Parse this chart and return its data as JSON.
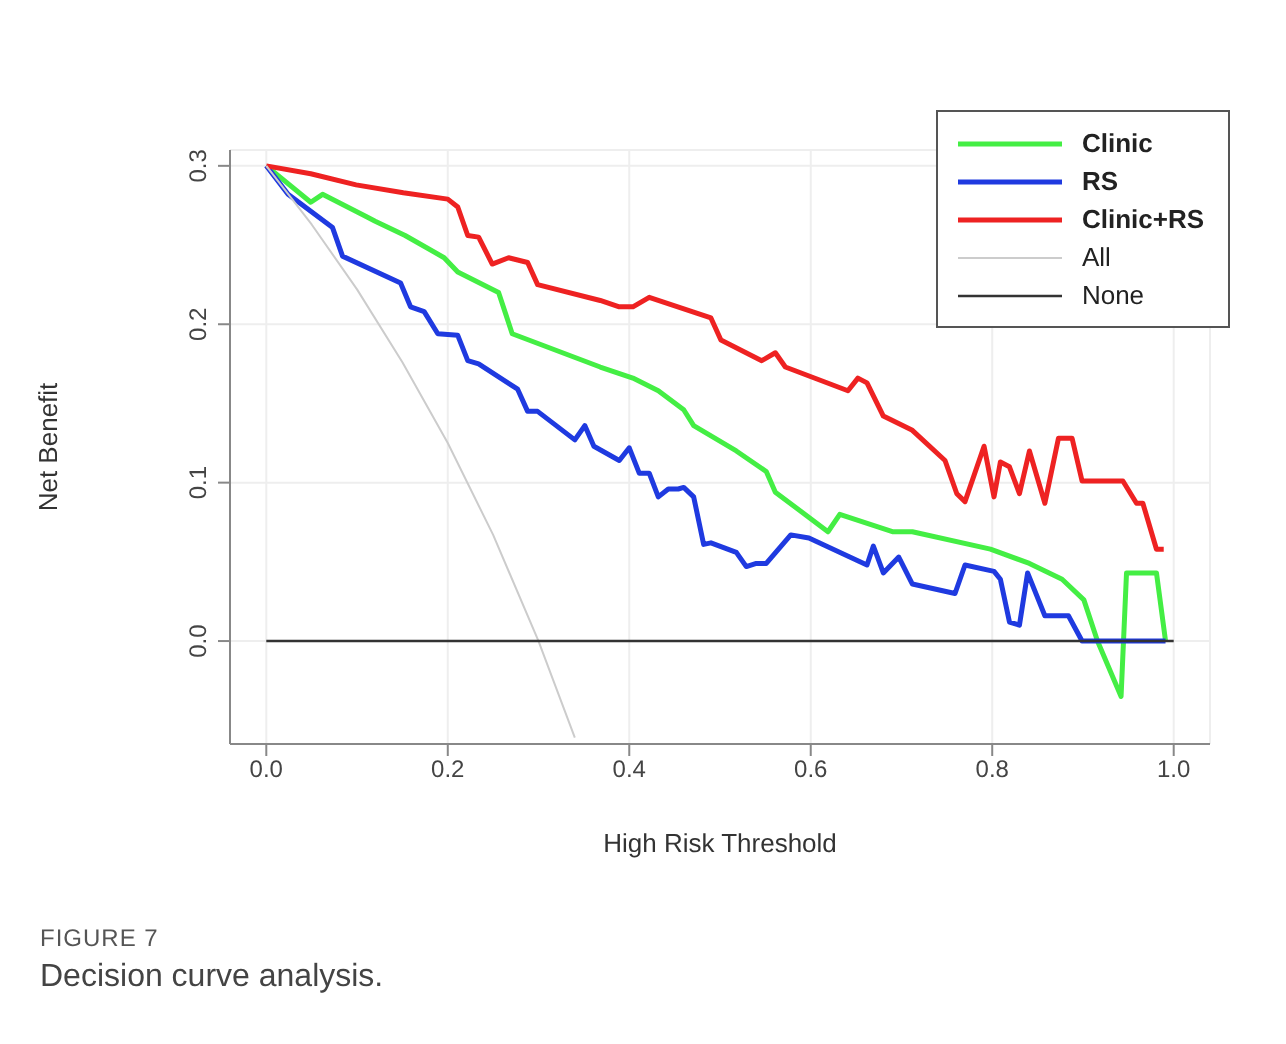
{
  "chart_data": {
    "type": "line",
    "xlabel": "High Risk Threshold",
    "ylabel": "Net Benefit",
    "xlim": [
      -0.04,
      1.04
    ],
    "ylim": [
      -0.065,
      0.31
    ],
    "xticks": [
      {
        "value": 0,
        "label": "0.0"
      },
      0.2,
      0.4,
      0.6,
      0.8,
      {
        "value": 1,
        "label": "1.0"
      }
    ],
    "yticks": [
      {
        "value": 0,
        "label": "0.0"
      },
      0.1,
      0.2,
      0.3
    ],
    "grid": true,
    "legend": "top right",
    "marker": "none",
    "line_style": "solid",
    "annotations": [
      "FIGURE 7",
      "Decision curve analysis."
    ],
    "series": [
      {
        "name": "Clinic",
        "color": "#44ee44",
        "x": [
          0,
          0.049,
          0.062,
          0.11,
          0.12,
          0.153,
          0.196,
          0.211,
          0.256,
          0.271,
          0.368,
          0.404,
          0.432,
          0.46,
          0.471,
          0.518,
          0.551,
          0.561,
          0.619,
          0.632,
          0.69,
          0.712,
          0.798,
          0.841,
          0.877,
          0.901,
          0.916,
          0.942,
          0.948,
          0.981,
          0.991
        ],
        "values": [
          0.3,
          0.277,
          0.282,
          0.268,
          0.265,
          0.256,
          0.242,
          0.233,
          0.22,
          0.194,
          0.173,
          0.166,
          0.158,
          0.146,
          0.136,
          0.12,
          0.107,
          0.094,
          0.069,
          0.08,
          0.069,
          0.069,
          0.058,
          0.049,
          0.039,
          0.026,
          0,
          -0.035,
          0.043,
          0.043,
          0
        ]
      },
      {
        "name": "RS",
        "color": "#1f3ae0",
        "x": [
          0,
          0.024,
          0.073,
          0.084,
          0.148,
          0.159,
          0.174,
          0.189,
          0.211,
          0.222,
          0.234,
          0.277,
          0.288,
          0.299,
          0.34,
          0.351,
          0.361,
          0.389,
          0.4,
          0.411,
          0.422,
          0.432,
          0.443,
          0.454,
          0.46,
          0.471,
          0.482,
          0.49,
          0.518,
          0.529,
          0.54,
          0.551,
          0.578,
          0.598,
          0.662,
          0.669,
          0.68,
          0.697,
          0.712,
          0.759,
          0.77,
          0.802,
          0.809,
          0.819,
          0.83,
          0.839,
          0.858,
          0.884,
          0.899,
          0.991
        ],
        "values": [
          0.3,
          0.282,
          0.261,
          0.243,
          0.226,
          0.211,
          0.208,
          0.194,
          0.193,
          0.177,
          0.175,
          0.159,
          0.145,
          0.145,
          0.127,
          0.136,
          0.123,
          0.114,
          0.122,
          0.106,
          0.106,
          0.091,
          0.096,
          0.096,
          0.097,
          0.091,
          0.061,
          0.062,
          0.056,
          0.047,
          0.049,
          0.049,
          0.067,
          0.065,
          0.048,
          0.06,
          0.043,
          0.053,
          0.036,
          0.03,
          0.048,
          0.044,
          0.039,
          0.012,
          0.01,
          0.043,
          0.016,
          0.016,
          0,
          0
        ]
      },
      {
        "name": "Clinic+RS",
        "color": "#ee2222",
        "x": [
          0,
          0.049,
          0.099,
          0.151,
          0.2,
          0.211,
          0.222,
          0.234,
          0.249,
          0.267,
          0.288,
          0.299,
          0.368,
          0.389,
          0.404,
          0.422,
          0.49,
          0.501,
          0.546,
          0.561,
          0.572,
          0.641,
          0.652,
          0.662,
          0.68,
          0.712,
          0.748,
          0.761,
          0.77,
          0.791,
          0.802,
          0.809,
          0.819,
          0.83,
          0.841,
          0.858,
          0.873,
          0.888,
          0.899,
          0.944,
          0.959,
          0.966,
          0.981,
          0.989
        ],
        "values": [
          0.3,
          0.295,
          0.288,
          0.283,
          0.279,
          0.274,
          0.256,
          0.255,
          0.238,
          0.242,
          0.239,
          0.225,
          0.215,
          0.211,
          0.211,
          0.217,
          0.204,
          0.19,
          0.177,
          0.182,
          0.173,
          0.158,
          0.166,
          0.163,
          0.142,
          0.133,
          0.114,
          0.093,
          0.088,
          0.123,
          0.091,
          0.113,
          0.11,
          0.093,
          0.12,
          0.087,
          0.128,
          0.128,
          0.101,
          0.101,
          0.087,
          0.087,
          0.058,
          0.058
        ]
      },
      {
        "name": "All",
        "color": "#cccccc",
        "x": [
          0,
          0.05,
          0.1,
          0.15,
          0.2,
          0.25,
          0.3,
          0.34
        ],
        "values": [
          0.3,
          0.263,
          0.222,
          0.176,
          0.125,
          0.067,
          0,
          -0.061
        ]
      },
      {
        "name": "None",
        "color": "#333333",
        "x": [
          0,
          1
        ],
        "values": [
          0,
          0
        ]
      }
    ]
  }
}
